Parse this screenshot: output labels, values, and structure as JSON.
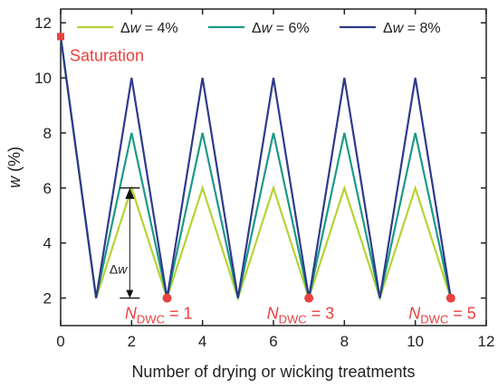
{
  "chart_data": {
    "type": "line",
    "xlabel": "Number of drying or wicking treatments",
    "ylabel_symbol": "w",
    "ylabel_unit": " (%)",
    "xlim": [
      0,
      12
    ],
    "ylim": [
      1,
      12.5
    ],
    "xticks": [
      0,
      2,
      4,
      6,
      8,
      10,
      12
    ],
    "yticks": [
      2,
      4,
      6,
      8,
      10,
      12
    ],
    "grid": false,
    "legend_position": "top",
    "series": [
      {
        "legend_symbol": "Δ",
        "legend_var": "w",
        "legend_value": " = 4%",
        "color": "#b5d334",
        "x": [
          0,
          1,
          2,
          3,
          4,
          5,
          6,
          7,
          8,
          9,
          10,
          11
        ],
        "y": [
          11.5,
          2,
          6,
          2,
          6,
          2,
          6,
          2,
          6,
          2,
          6,
          2
        ]
      },
      {
        "legend_symbol": "Δ",
        "legend_var": "w",
        "legend_value": " = 6%",
        "color": "#1b9a85",
        "x": [
          0,
          1,
          2,
          3,
          4,
          5,
          6,
          7,
          8,
          9,
          10,
          11
        ],
        "y": [
          11.5,
          2,
          8,
          2,
          8,
          2,
          8,
          2,
          8,
          2,
          8,
          2
        ]
      },
      {
        "legend_symbol": "Δ",
        "legend_var": "w",
        "legend_value": " = 8%",
        "color": "#2e3a8c",
        "x": [
          0,
          1,
          2,
          3,
          4,
          5,
          6,
          7,
          8,
          9,
          10,
          11
        ],
        "y": [
          11.5,
          2,
          10,
          2,
          10,
          2,
          10,
          2,
          10,
          2,
          10,
          2
        ]
      }
    ],
    "saturation_point": {
      "x": 0,
      "y": 11.5,
      "label": "Saturation",
      "color": "#e8413e"
    },
    "dwc_points": [
      {
        "x": 3,
        "y": 2,
        "prefix": "N",
        "subscript": "DWC",
        "suffix": " = 1"
      },
      {
        "x": 7,
        "y": 2,
        "prefix": "N",
        "subscript": "DWC",
        "suffix": " = 3"
      },
      {
        "x": 11,
        "y": 2,
        "prefix": "N",
        "subscript": "DWC",
        "suffix": " = 5"
      }
    ],
    "delta_annotation": {
      "x": 2,
      "y_low": 2,
      "y_high": 6,
      "symbol": "Δ",
      "var": "w"
    },
    "annotation_color": "#e8413e"
  }
}
